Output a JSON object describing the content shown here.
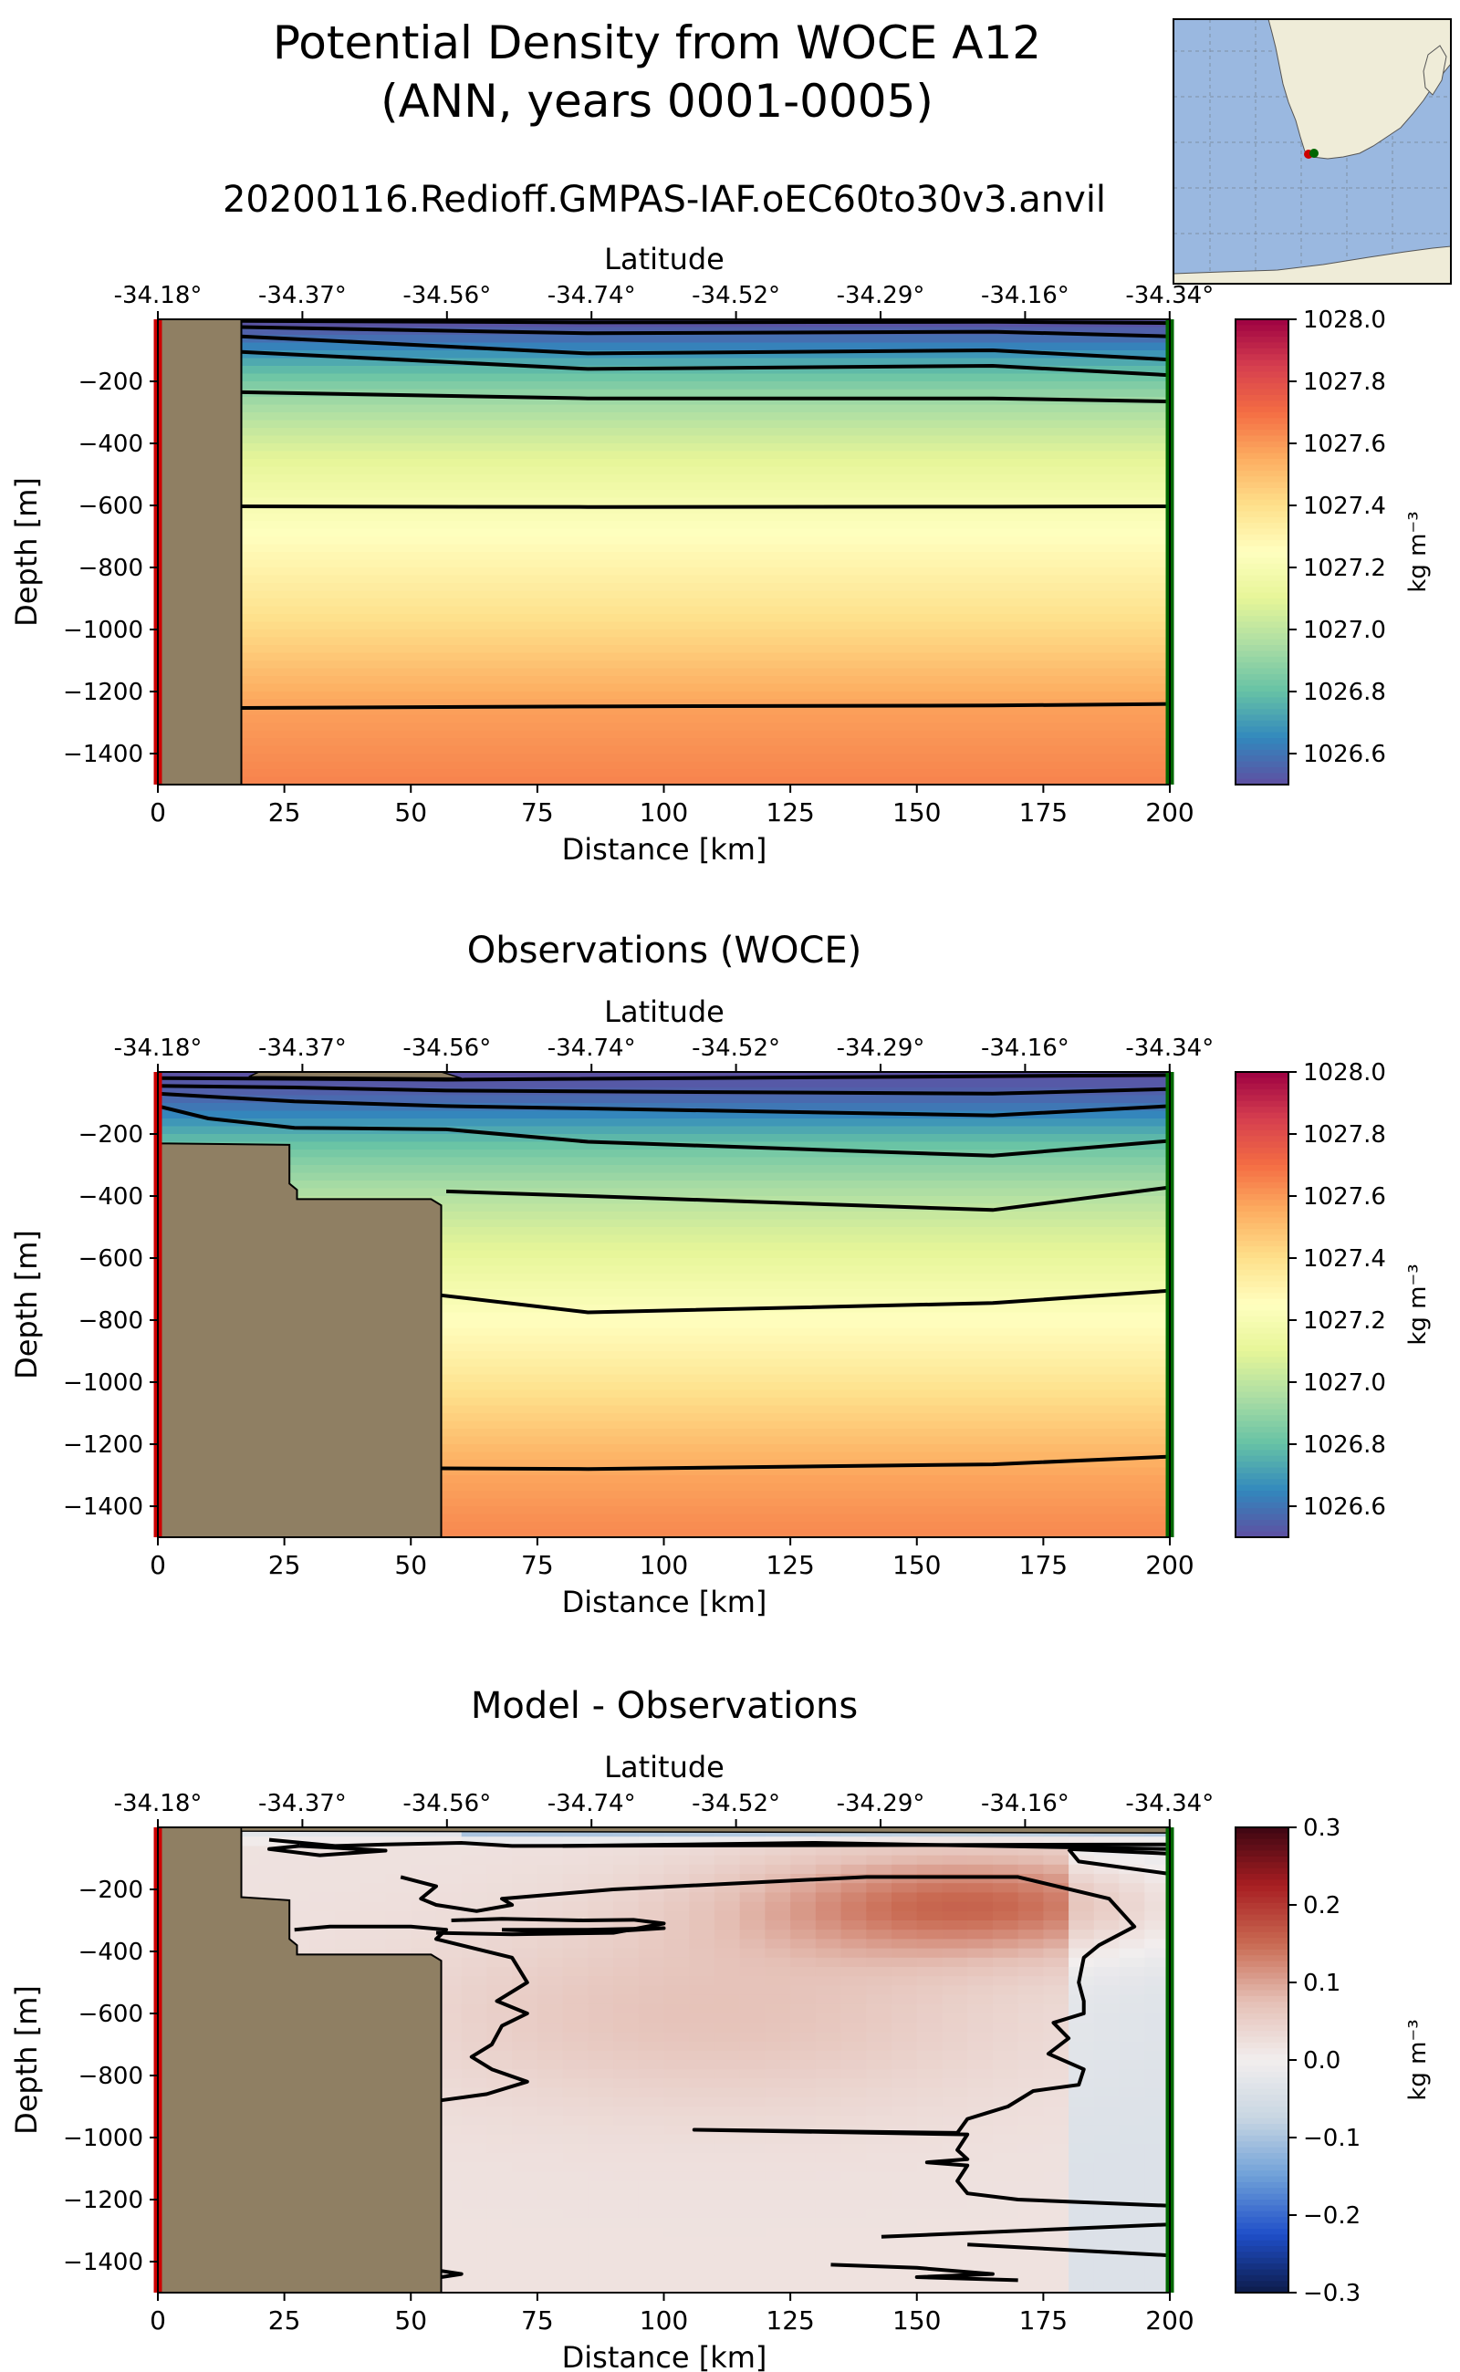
{
  "figure": {
    "title_line1": "Potential Density from WOCE A12",
    "title_line2": "(ANN, years 0001-0005)",
    "run_name": "20200116.Redioff.GMPAS-IAF.oEC60to30v3.anvil"
  },
  "colors": {
    "land": "#8f7f63",
    "contour": "#000000",
    "start_marker": "#cc0000",
    "end_marker": "#006600",
    "map_ocean": "#9ab8e0",
    "map_land": "#efecd8",
    "spectral_stops": [
      "#5e4fa2",
      "#3288bd",
      "#66c2a5",
      "#abdda4",
      "#e6f598",
      "#ffffbf",
      "#fee08b",
      "#fdae61",
      "#f46d43",
      "#d53e4f",
      "#9e0142"
    ],
    "diff_stops": [
      "#0d1b4a",
      "#1f4fc9",
      "#6fa0d8",
      "#c8d6e2",
      "#f2eeee",
      "#e5c0b6",
      "#c96a52",
      "#a81e22",
      "#3d0612"
    ]
  },
  "inset_map": {
    "description_icon": "map-inset-icon"
  },
  "chart_data": [
    {
      "type": "heatmap",
      "title": "",
      "top_axis_label": "Latitude",
      "top_ticks": [
        "-34.18°",
        "-34.37°",
        "-34.56°",
        "-34.74°",
        "-34.52°",
        "-34.29°",
        "-34.16°",
        "-34.34°"
      ],
      "xlabel": "Distance [km]",
      "ylabel": "Depth [m]",
      "xlim": [
        0,
        200
      ],
      "ylim": [
        -1500,
        0
      ],
      "x_ticks": [
        "0",
        "25",
        "50",
        "75",
        "100",
        "125",
        "150",
        "175",
        "200"
      ],
      "x_tick_values": [
        0,
        25,
        50,
        75,
        100,
        125,
        150,
        175,
        200
      ],
      "y_ticks": [
        "−200",
        "−400",
        "−600",
        "−800",
        "−1000",
        "−1200",
        "−1400"
      ],
      "y_tick_values": [
        -200,
        -400,
        -600,
        -800,
        -1000,
        -1200,
        -1400
      ],
      "colorbar": {
        "ticks": [
          "1028.0",
          "1027.8",
          "1027.6",
          "1027.4",
          "1027.2",
          "1027.0",
          "1026.8",
          "1026.6"
        ],
        "tick_values": [
          1028.0,
          1027.8,
          1027.6,
          1027.4,
          1027.2,
          1027.0,
          1026.8,
          1026.6
        ],
        "range": [
          1026.5,
          1028.0
        ],
        "label": "kg m⁻³",
        "scheme": "spectral"
      },
      "field": {
        "kind": "density",
        "profile_depths": [
          0,
          20,
          60,
          100,
          150,
          200,
          260,
          350,
          450,
          600,
          750,
          900,
          1050,
          1250,
          1500
        ],
        "profile_values": [
          1026.5,
          1026.52,
          1026.58,
          1026.66,
          1026.76,
          1026.84,
          1026.92,
          1027.01,
          1027.1,
          1027.2,
          1027.28,
          1027.36,
          1027.45,
          1027.58,
          1027.65
        ],
        "x_variation": 0.0
      },
      "land_polygon": [
        [
          0,
          0
        ],
        [
          16.5,
          0
        ],
        [
          16.5,
          -1500
        ],
        [
          0,
          -1500
        ]
      ],
      "contours": [
        [
          [
            16.5,
            -5
          ],
          [
            85,
            -10
          ],
          [
            165,
            -8
          ],
          [
            200,
            -12
          ]
        ],
        [
          [
            16.5,
            -25
          ],
          [
            85,
            -45
          ],
          [
            165,
            -40
          ],
          [
            200,
            -55
          ]
        ],
        [
          [
            16.5,
            -55
          ],
          [
            85,
            -110
          ],
          [
            165,
            -100
          ],
          [
            200,
            -130
          ]
        ],
        [
          [
            16.5,
            -105
          ],
          [
            85,
            -160
          ],
          [
            165,
            -150
          ],
          [
            200,
            -180
          ]
        ],
        [
          [
            16.5,
            -235
          ],
          [
            85,
            -255
          ],
          [
            165,
            -255
          ],
          [
            200,
            -265
          ]
        ],
        [
          [
            16.5,
            -603
          ],
          [
            85,
            -605
          ],
          [
            165,
            -604
          ],
          [
            200,
            -603
          ]
        ],
        [
          [
            16.5,
            -1253
          ],
          [
            85,
            -1248
          ],
          [
            165,
            -1245
          ],
          [
            200,
            -1240
          ]
        ]
      ]
    },
    {
      "type": "heatmap",
      "title": "Observations (WOCE)",
      "top_axis_label": "Latitude",
      "top_ticks": [
        "-34.18°",
        "-34.37°",
        "-34.56°",
        "-34.74°",
        "-34.52°",
        "-34.29°",
        "-34.16°",
        "-34.34°"
      ],
      "xlabel": "Distance [km]",
      "ylabel": "Depth [m]",
      "xlim": [
        0,
        200
      ],
      "ylim": [
        -1500,
        0
      ],
      "x_ticks": [
        "0",
        "25",
        "50",
        "75",
        "100",
        "125",
        "150",
        "175",
        "200"
      ],
      "x_tick_values": [
        0,
        25,
        50,
        75,
        100,
        125,
        150,
        175,
        200
      ],
      "y_ticks": [
        "−200",
        "−400",
        "−600",
        "−800",
        "−1000",
        "−1200",
        "−1400"
      ],
      "y_tick_values": [
        -200,
        -400,
        -600,
        -800,
        -1000,
        -1200,
        -1400
      ],
      "colorbar": {
        "ticks": [
          "1028.0",
          "1027.8",
          "1027.6",
          "1027.4",
          "1027.2",
          "1027.0",
          "1026.8",
          "1026.6"
        ],
        "tick_values": [
          1028.0,
          1027.8,
          1027.6,
          1027.4,
          1027.2,
          1027.0,
          1026.8,
          1026.6
        ],
        "range": [
          1026.5,
          1028.0
        ],
        "label": "kg m⁻³",
        "scheme": "spectral"
      },
      "field": {
        "kind": "density",
        "profile_depths": [
          0,
          30,
          80,
          130,
          180,
          230,
          300,
          400,
          500,
          650,
          800,
          950,
          1100,
          1300,
          1500
        ],
        "profile_values": [
          1026.5,
          1026.52,
          1026.56,
          1026.63,
          1026.72,
          1026.8,
          1026.88,
          1026.97,
          1027.05,
          1027.15,
          1027.25,
          1027.34,
          1027.44,
          1027.57,
          1027.64
        ],
        "x_variation": 0.0
      },
      "land_polygon": [
        [
          0,
          0
        ],
        [
          0,
          -1500
        ],
        [
          56,
          -1500
        ],
        [
          56,
          -430
        ],
        [
          54,
          -410
        ],
        [
          27.5,
          -410
        ],
        [
          27.5,
          -380
        ],
        [
          26,
          -360
        ],
        [
          26,
          -235
        ],
        [
          0,
          -230
        ]
      ],
      "land_polygon_top": [
        [
          0,
          0
        ],
        [
          20,
          0
        ],
        [
          18,
          -15
        ],
        [
          60,
          -20
        ],
        [
          56,
          0
        ]
      ],
      "contours": [
        [
          [
            0,
            -20
          ],
          [
            27,
            -22
          ],
          [
            57,
            -25
          ],
          [
            200,
            -10
          ]
        ],
        [
          [
            0,
            -45
          ],
          [
            27,
            -50
          ],
          [
            57,
            -60
          ],
          [
            165,
            -70
          ],
          [
            200,
            -55
          ]
        ],
        [
          [
            0,
            -70
          ],
          [
            27,
            -95
          ],
          [
            57,
            -110
          ],
          [
            165,
            -140
          ],
          [
            200,
            -110
          ]
        ],
        [
          [
            0,
            -110
          ],
          [
            10,
            -150
          ],
          [
            27,
            -180
          ],
          [
            57,
            -185
          ],
          [
            85,
            -225
          ],
          [
            165,
            -270
          ],
          [
            200,
            -222
          ]
        ],
        [
          [
            57,
            -385
          ],
          [
            85,
            -400
          ],
          [
            165,
            -445
          ],
          [
            200,
            -372
          ]
        ],
        [
          [
            56,
            -720
          ],
          [
            85,
            -775
          ],
          [
            165,
            -745
          ],
          [
            200,
            -705
          ]
        ],
        [
          [
            56,
            -1278
          ],
          [
            85,
            -1280
          ],
          [
            165,
            -1265
          ],
          [
            200,
            -1240
          ]
        ]
      ]
    },
    {
      "type": "heatmap",
      "title": "Model - Observations",
      "top_axis_label": "Latitude",
      "top_ticks": [
        "-34.18°",
        "-34.37°",
        "-34.56°",
        "-34.74°",
        "-34.52°",
        "-34.29°",
        "-34.16°",
        "-34.34°"
      ],
      "xlabel": "Distance [km]",
      "ylabel": "Depth [m]",
      "xlim": [
        0,
        200
      ],
      "ylim": [
        -1500,
        0
      ],
      "x_ticks": [
        "0",
        "25",
        "50",
        "75",
        "100",
        "125",
        "150",
        "175",
        "200"
      ],
      "x_tick_values": [
        0,
        25,
        50,
        75,
        100,
        125,
        150,
        175,
        200
      ],
      "y_ticks": [
        "−200",
        "−400",
        "−600",
        "−800",
        "−1000",
        "−1200",
        "−1400"
      ],
      "y_tick_values": [
        -200,
        -400,
        -600,
        -800,
        -1000,
        -1200,
        -1400
      ],
      "colorbar": {
        "ticks": [
          "0.3",
          "0.2",
          "0.1",
          "0.0",
          "−0.1",
          "−0.2",
          "−0.3"
        ],
        "tick_values": [
          0.3,
          0.2,
          0.1,
          0.0,
          -0.1,
          -0.2,
          -0.3
        ],
        "range": [
          -0.3,
          0.3
        ],
        "label": "kg m⁻³",
        "scheme": "diff"
      },
      "field": {
        "kind": "difference",
        "description": "near-surface negative band, positive anomaly centered ~160 km / 250 m, weak negative on east edge below 400 m"
      },
      "land_polygon": [
        [
          0,
          0
        ],
        [
          0,
          -1500
        ],
        [
          56,
          -1500
        ],
        [
          56,
          -430
        ],
        [
          54,
          -410
        ],
        [
          27.5,
          -410
        ],
        [
          27.5,
          -380
        ],
        [
          26,
          -360
        ],
        [
          26,
          -235
        ],
        [
          16.5,
          -225
        ],
        [
          16.5,
          0
        ]
      ],
      "land_polygon_top": [
        [
          16.5,
          0
        ],
        [
          200,
          0
        ],
        [
          200,
          -18
        ],
        [
          16.5,
          -12
        ]
      ],
      "contours": [
        [
          [
            22,
            -40
          ],
          [
            35,
            -60
          ],
          [
            45,
            -55
          ],
          [
            60,
            -50
          ],
          [
            70,
            -60
          ],
          [
            200,
            -55
          ]
        ],
        [
          [
            80,
            -60
          ],
          [
            130,
            -50
          ],
          [
            200,
            -70
          ]
        ],
        [
          [
            28,
            -60
          ],
          [
            45,
            -75
          ],
          [
            32,
            -90
          ],
          [
            22,
            -70
          ],
          [
            28,
            -60
          ]
        ],
        [
          [
            180,
            -70
          ],
          [
            200,
            -85
          ],
          [
            200,
            -150
          ],
          [
            182,
            -110
          ],
          [
            180,
            -70
          ]
        ],
        [
          [
            48,
            -160
          ],
          [
            55,
            -190
          ],
          [
            52,
            -230
          ],
          [
            55,
            -250
          ],
          [
            63,
            -270
          ],
          [
            70,
            -250
          ],
          [
            68,
            -230
          ],
          [
            90,
            -200
          ],
          [
            140,
            -160
          ],
          [
            170,
            -160
          ],
          [
            188,
            -230
          ],
          [
            193,
            -320
          ],
          [
            186,
            -380
          ],
          [
            183,
            -420
          ],
          [
            182,
            -500
          ],
          [
            183,
            -560
          ],
          [
            183,
            -600
          ],
          [
            177,
            -630
          ],
          [
            180,
            -680
          ],
          [
            176,
            -730
          ],
          [
            183,
            -780
          ],
          [
            182,
            -830
          ],
          [
            173,
            -850
          ],
          [
            168,
            -900
          ],
          [
            164,
            -920
          ],
          [
            160,
            -940
          ],
          [
            158,
            -985
          ],
          [
            106,
            -975
          ],
          [
            160,
            -990
          ],
          [
            158,
            -1040
          ],
          [
            160,
            -1070
          ],
          [
            152,
            -1080
          ],
          [
            160,
            -1090
          ],
          [
            158,
            -1140
          ],
          [
            160,
            -1180
          ],
          [
            170,
            -1200
          ],
          [
            200,
            -1220
          ]
        ],
        [
          [
            27,
            -330
          ],
          [
            34,
            -320
          ],
          [
            50,
            -320
          ],
          [
            57,
            -330
          ],
          [
            55,
            -360
          ],
          [
            70,
            -420
          ],
          [
            73,
            -500
          ],
          [
            67,
            -560
          ],
          [
            73,
            -600
          ],
          [
            68,
            -640
          ],
          [
            66,
            -700
          ],
          [
            62,
            -740
          ],
          [
            66,
            -780
          ],
          [
            73,
            -820
          ],
          [
            65,
            -860
          ],
          [
            56,
            -880
          ]
        ],
        [
          [
            58,
            -300
          ],
          [
            68,
            -295
          ],
          [
            84,
            -300
          ],
          [
            94,
            -298
          ],
          [
            100,
            -310
          ],
          [
            90,
            -340
          ],
          [
            70,
            -345
          ],
          [
            55,
            -340
          ]
        ],
        [
          [
            68,
            -330
          ],
          [
            85,
            -340
          ],
          [
            100,
            -325
          ],
          [
            85,
            -330
          ],
          [
            68,
            -330
          ]
        ],
        [
          [
            143,
            -1320
          ],
          [
            200,
            -1280
          ]
        ],
        [
          [
            160,
            -1345
          ],
          [
            200,
            -1380
          ]
        ],
        [
          [
            133,
            -1410
          ],
          [
            150,
            -1420
          ],
          [
            165,
            -1440
          ],
          [
            150,
            -1450
          ],
          [
            170,
            -1460
          ]
        ],
        [
          [
            56,
            -1430
          ],
          [
            60,
            -1440
          ],
          [
            56,
            -1450
          ]
        ]
      ]
    }
  ]
}
